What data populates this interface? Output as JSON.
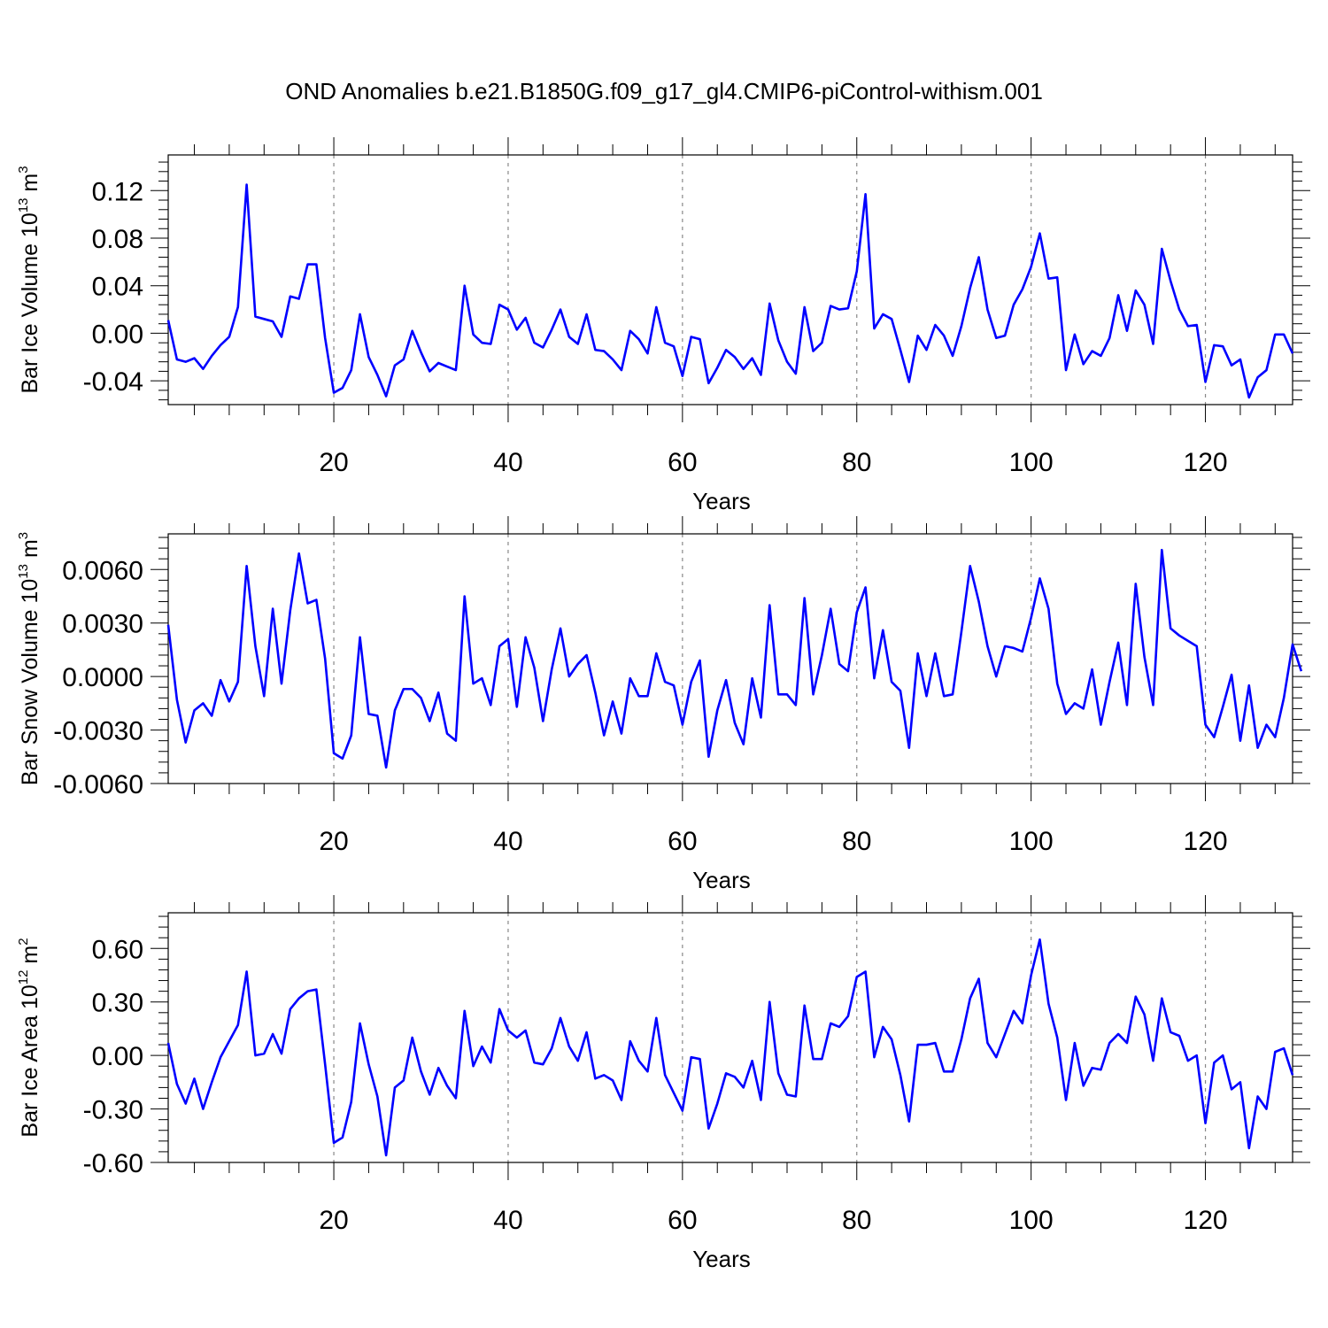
{
  "title": "OND Anomalies b.e21.B1850G.f09_g17_gl4.CMIP6-piControl-withism.001",
  "colors": {
    "series": "#0000ff",
    "grid": "#888888",
    "frame": "#000000"
  },
  "chart_data": [
    {
      "type": "line",
      "ylabel": {
        "main": "Bar Ice Volume 10",
        "exp": "13",
        "unit": " m",
        "unit_exp": "3"
      },
      "xlabel": "Years",
      "xlim": [
        1,
        130
      ],
      "ylim": [
        -0.06,
        0.15
      ],
      "x_ticks": [
        "20",
        "40",
        "60",
        "80",
        "100",
        "120"
      ],
      "y_ticks": [
        "0.12",
        "0.08",
        "0.04",
        "0.00",
        "-0.04"
      ],
      "grid": "vertical dashed at major x ticks",
      "series": [
        {
          "values": [
            0.011,
            -0.022,
            -0.024,
            -0.021,
            -0.03,
            -0.019,
            -0.01,
            -0.003,
            0.022,
            0.125,
            0.014,
            0.012,
            0.01,
            -0.003,
            0.031,
            0.029,
            0.058,
            0.058,
            -0.004,
            -0.05,
            -0.046,
            -0.031,
            0.016,
            -0.02,
            -0.035,
            -0.053,
            -0.027,
            -0.022,
            0.002,
            -0.016,
            -0.032,
            -0.025,
            -0.028,
            -0.031,
            0.04,
            -0.001,
            -0.008,
            -0.009,
            0.024,
            0.02,
            0.003,
            0.013,
            -0.008,
            -0.012,
            0.003,
            0.02,
            -0.003,
            -0.009,
            0.016,
            -0.014,
            -0.015,
            -0.022,
            -0.031,
            0.002,
            -0.005,
            -0.017,
            0.022,
            -0.008,
            -0.011,
            -0.036,
            -0.003,
            -0.005,
            -0.042,
            -0.029,
            -0.014,
            -0.02,
            -0.03,
            -0.021,
            -0.035,
            0.025,
            -0.006,
            -0.024,
            -0.034,
            0.022,
            -0.015,
            -0.008,
            0.023,
            0.02,
            0.021,
            0.052,
            0.117,
            0.004,
            0.016,
            0.012,
            -0.014,
            -0.041,
            -0.002,
            -0.014,
            0.007,
            -0.002,
            -0.019,
            0.006,
            0.038,
            0.064,
            0.02,
            -0.004,
            -0.002,
            0.024,
            0.037,
            0.056,
            0.084,
            0.046,
            0.047,
            -0.031,
            -0.001,
            -0.026,
            -0.015,
            -0.019,
            -0.004,
            0.032,
            0.002,
            0.036,
            0.024,
            -0.009,
            0.071,
            0.044,
            0.02,
            0.006,
            0.007,
            -0.041,
            -0.01,
            -0.011,
            -0.027,
            -0.022,
            -0.054,
            -0.037,
            -0.031,
            -0.001,
            -0.001,
            -0.017
          ]
        }
      ]
    },
    {
      "type": "line",
      "ylabel": {
        "main": "Bar Snow Volume 10",
        "exp": "13",
        "unit": " m",
        "unit_exp": "3"
      },
      "xlabel": "Years",
      "xlim": [
        1,
        130
      ],
      "ylim": [
        -0.006,
        0.008
      ],
      "x_ticks": [
        "20",
        "40",
        "60",
        "80",
        "100",
        "120"
      ],
      "y_ticks": [
        "0.0060",
        "0.0030",
        "0.0000",
        "-0.0030",
        "-0.0060"
      ],
      "grid": "vertical dashed at major x ticks",
      "series": [
        {
          "values": [
            0.0029,
            -0.0013,
            -0.0037,
            -0.0019,
            -0.0015,
            -0.0022,
            -0.0002,
            -0.0014,
            -0.0003,
            0.0062,
            0.0017,
            -0.0011,
            0.0038,
            -0.0004,
            0.0037,
            0.0069,
            0.0041,
            0.0043,
            0.001,
            -0.0043,
            -0.0046,
            -0.0033,
            0.0022,
            -0.0021,
            -0.0022,
            -0.0051,
            -0.0019,
            -0.0007,
            -0.0007,
            -0.0012,
            -0.0025,
            -0.0009,
            -0.0032,
            -0.0036,
            0.0045,
            -0.0004,
            -0.0001,
            -0.0016,
            0.0017,
            0.0021,
            -0.0017,
            0.0022,
            0.0005,
            -0.0025,
            0.0004,
            0.0027,
            0.0,
            0.0007,
            0.0012,
            -0.0009,
            -0.0033,
            -0.0014,
            -0.0032,
            -0.0001,
            -0.0011,
            -0.0011,
            0.0013,
            -0.0003,
            -0.0005,
            -0.0027,
            -0.0003,
            0.0009,
            -0.0045,
            -0.0019,
            -0.0002,
            -0.0026,
            -0.0038,
            -0.0001,
            -0.0023,
            0.004,
            -0.001,
            -0.001,
            -0.0016,
            0.0044,
            -0.001,
            0.0012,
            0.0038,
            0.0007,
            0.0003,
            0.0036,
            0.005,
            -0.0001,
            0.0026,
            -0.0003,
            -0.0008,
            -0.004,
            0.0013,
            -0.0011,
            0.0013,
            -0.0011,
            -0.001,
            0.0025,
            0.0062,
            0.0042,
            0.0017,
            0.0,
            0.0017,
            0.0016,
            0.0014,
            0.0033,
            0.0055,
            0.0038,
            -0.0004,
            -0.0021,
            -0.0015,
            -0.0018,
            0.0004,
            -0.0027,
            -0.0003,
            0.0019,
            -0.0016,
            0.0052,
            0.0011,
            -0.0016,
            0.0071,
            0.0027,
            0.0023,
            0.002,
            0.0017,
            -0.0027,
            -0.0034,
            -0.0017,
            0.0001,
            -0.0036,
            -0.0005,
            -0.004,
            -0.0027,
            -0.0034,
            -0.0012,
            0.0018,
            0.0003
          ]
        }
      ]
    },
    {
      "type": "line",
      "ylabel": {
        "main": "Bar Ice Area 10",
        "exp": "12",
        "unit": " m",
        "unit_exp": "2"
      },
      "xlabel": "Years",
      "xlim": [
        1,
        130
      ],
      "ylim": [
        -0.6,
        0.8
      ],
      "x_ticks": [
        "20",
        "40",
        "60",
        "80",
        "100",
        "120"
      ],
      "y_ticks": [
        "0.60",
        "0.30",
        "0.00",
        "-0.30",
        "-0.60"
      ],
      "grid": "vertical dashed at major x ticks",
      "series": [
        {
          "values": [
            0.07,
            -0.16,
            -0.27,
            -0.13,
            -0.3,
            -0.15,
            -0.01,
            0.08,
            0.17,
            0.47,
            0.0,
            0.01,
            0.12,
            0.01,
            0.26,
            0.32,
            0.36,
            0.37,
            -0.05,
            -0.49,
            -0.46,
            -0.26,
            0.18,
            -0.05,
            -0.23,
            -0.56,
            -0.18,
            -0.14,
            0.1,
            -0.09,
            -0.22,
            -0.07,
            -0.17,
            -0.24,
            0.25,
            -0.06,
            0.05,
            -0.04,
            0.26,
            0.14,
            0.1,
            0.14,
            -0.04,
            -0.05,
            0.04,
            0.21,
            0.05,
            -0.03,
            0.13,
            -0.13,
            -0.11,
            -0.14,
            -0.25,
            0.08,
            -0.03,
            -0.09,
            0.21,
            -0.11,
            -0.21,
            -0.31,
            -0.01,
            -0.02,
            -0.41,
            -0.27,
            -0.1,
            -0.12,
            -0.18,
            -0.03,
            -0.25,
            0.3,
            -0.1,
            -0.22,
            -0.23,
            0.28,
            -0.02,
            -0.02,
            0.18,
            0.16,
            0.22,
            0.44,
            0.47,
            -0.01,
            0.16,
            0.09,
            -0.11,
            -0.37,
            0.06,
            0.06,
            0.07,
            -0.09,
            -0.09,
            0.09,
            0.32,
            0.43,
            0.07,
            -0.01,
            0.12,
            0.25,
            0.18,
            0.45,
            0.65,
            0.29,
            0.1,
            -0.25,
            0.07,
            -0.17,
            -0.07,
            -0.08,
            0.07,
            0.12,
            0.07,
            0.33,
            0.23,
            -0.03,
            0.32,
            0.13,
            0.11,
            -0.03,
            0.0,
            -0.38,
            -0.04,
            0.0,
            -0.19,
            -0.15,
            -0.52,
            -0.23,
            -0.3,
            0.02,
            0.04,
            -0.11
          ]
        }
      ]
    }
  ]
}
